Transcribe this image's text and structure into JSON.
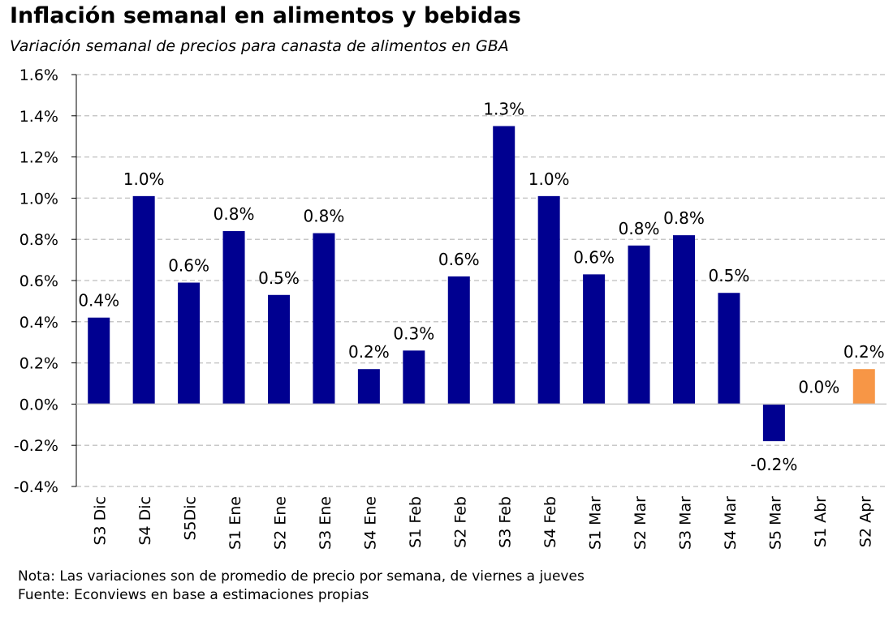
{
  "title": "Inflación semanal en alimentos y bebidas",
  "subtitle": "Variación semanal de precios para canasta de alimentos en GBA",
  "notes": {
    "nota": "Nota: Las variaciones son de promedio de precio por semana, de viernes a jueves",
    "fuente": "Fuente: Econviews en base a estimaciones propias"
  },
  "colors": {
    "bar": "#000090",
    "highlight": "#f79646",
    "grid": "#c8c8c8"
  },
  "chart_data": {
    "type": "bar",
    "title": "Inflación semanal en alimentos y bebidas",
    "subtitle": "Variación semanal de precios para canasta de alimentos en GBA",
    "categories": [
      "S3 Dic",
      "S4 Dic",
      "S5Dic",
      "S1 Ene",
      "S2 Ene",
      "S3 Ene",
      "S4 Ene",
      "S1 Feb",
      "S2 Feb",
      "S3 Feb",
      "S4 Feb",
      "S1 Mar",
      "S2 Mar",
      "S3 Mar",
      "S4 Mar",
      "S5 Mar",
      "S1 Abr",
      "S2 Apr"
    ],
    "values": [
      0.42,
      1.01,
      0.59,
      0.84,
      0.53,
      0.83,
      0.17,
      0.26,
      0.62,
      1.35,
      1.01,
      0.63,
      0.77,
      0.82,
      0.54,
      -0.18,
      0.0,
      0.17
    ],
    "data_labels": [
      "0.4%",
      "1.0%",
      "0.6%",
      "0.8%",
      "0.5%",
      "0.8%",
      "0.2%",
      "0.3%",
      "0.6%",
      "1.3%",
      "1.0%",
      "0.6%",
      "0.8%",
      "0.8%",
      "0.5%",
      "-0.2%",
      "0.0%",
      "0.2%"
    ],
    "highlight_index": 17,
    "ylim": [
      -0.4,
      1.6
    ],
    "y_ticks": [
      -0.4,
      -0.2,
      0.0,
      0.2,
      0.4,
      0.6,
      0.8,
      1.0,
      1.2,
      1.4,
      1.6
    ],
    "y_tick_labels": [
      "-0.4%",
      "-0.2%",
      "0.0%",
      "0.2%",
      "0.4%",
      "0.6%",
      "0.8%",
      "1.0%",
      "1.2%",
      "1.4%",
      "1.6%"
    ],
    "unit": "%",
    "grid": true,
    "legend": "none"
  }
}
